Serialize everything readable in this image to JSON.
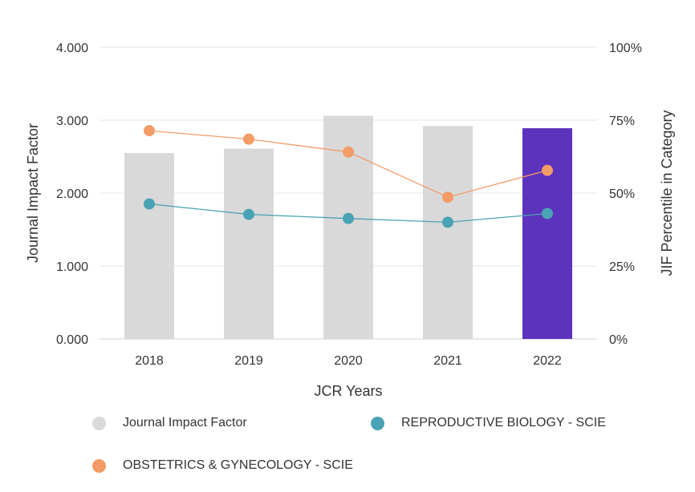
{
  "chart_data": {
    "type": "bar",
    "xlabel": "JCR Years",
    "ylabel": "Journal Impact Factor",
    "y2label": "JIF Percentile in Category",
    "categories": [
      "2018",
      "2019",
      "2020",
      "2021",
      "2022"
    ],
    "ylim": [
      0,
      4
    ],
    "y_ticks": [
      "0.000",
      "1.000",
      "2.000",
      "3.000",
      "4.000"
    ],
    "y2lim": [
      0,
      100
    ],
    "y2_ticks": [
      "0%",
      "25%",
      "50%",
      "75%",
      "100%"
    ],
    "grid": true,
    "legend_position": "bottom",
    "bars": {
      "name": "Journal Impact Factor",
      "values": [
        2.55,
        2.61,
        3.06,
        2.92,
        2.89
      ],
      "color": "#d9d9d9",
      "highlight_color": "#5c33bd",
      "highlight_index": 4
    },
    "series": [
      {
        "name": "REPRODUCTIVE BIOLOGY - SCIE",
        "axis": "right",
        "color": "#4aa3b4",
        "values": [
          46.3,
          42.7,
          41.3,
          40.0,
          43.0
        ]
      },
      {
        "name": "OBSTETRICS & GYNECOLOGY - SCIE",
        "axis": "right",
        "color": "#f39c67",
        "values": [
          71.4,
          68.5,
          64.1,
          48.6,
          57.8
        ]
      }
    ]
  },
  "legend": {
    "items": [
      {
        "label": "Journal Impact Factor",
        "color": "#d9d9d9"
      },
      {
        "label": "REPRODUCTIVE BIOLOGY - SCIE",
        "color": "#4aa3b4"
      },
      {
        "label": "OBSTETRICS & GYNECOLOGY - SCIE",
        "color": "#f39c67"
      }
    ]
  }
}
